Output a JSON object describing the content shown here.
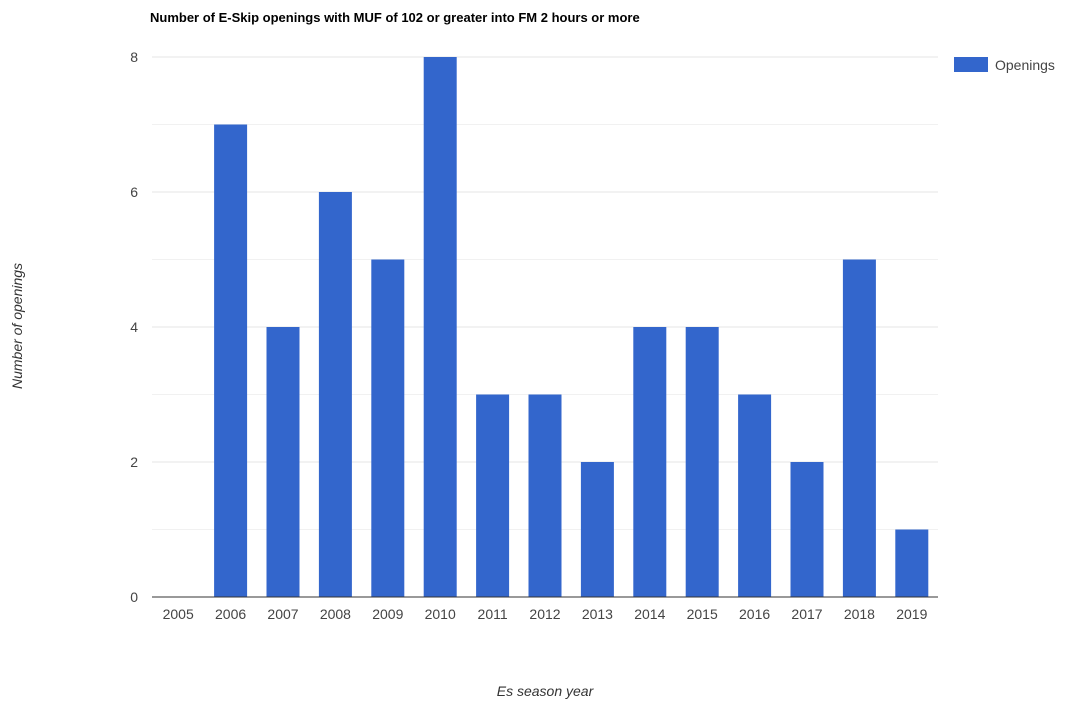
{
  "chart_data": {
    "type": "bar",
    "title": "Number of E-Skip openings with MUF of 102 or greater into FM 2 hours or more",
    "xlabel": "Es season year",
    "ylabel": "Number of openings",
    "categories": [
      "2005",
      "2006",
      "2007",
      "2008",
      "2009",
      "2010",
      "2011",
      "2012",
      "2013",
      "2014",
      "2015",
      "2016",
      "2017",
      "2018",
      "2019"
    ],
    "series": [
      {
        "name": "Openings",
        "values": [
          0,
          7,
          4,
          6,
          5,
          8,
          3,
          3,
          2,
          4,
          4,
          3,
          2,
          5,
          1
        ]
      }
    ],
    "ylim": [
      0,
      8
    ],
    "yticks": [
      0,
      2,
      4,
      6,
      8
    ],
    "grid": true,
    "legend_position": "top-right",
    "colors": {
      "bar": "#3366cc",
      "gridline": "#e6e6e6",
      "axis": "#333333",
      "text": "#444444"
    }
  }
}
